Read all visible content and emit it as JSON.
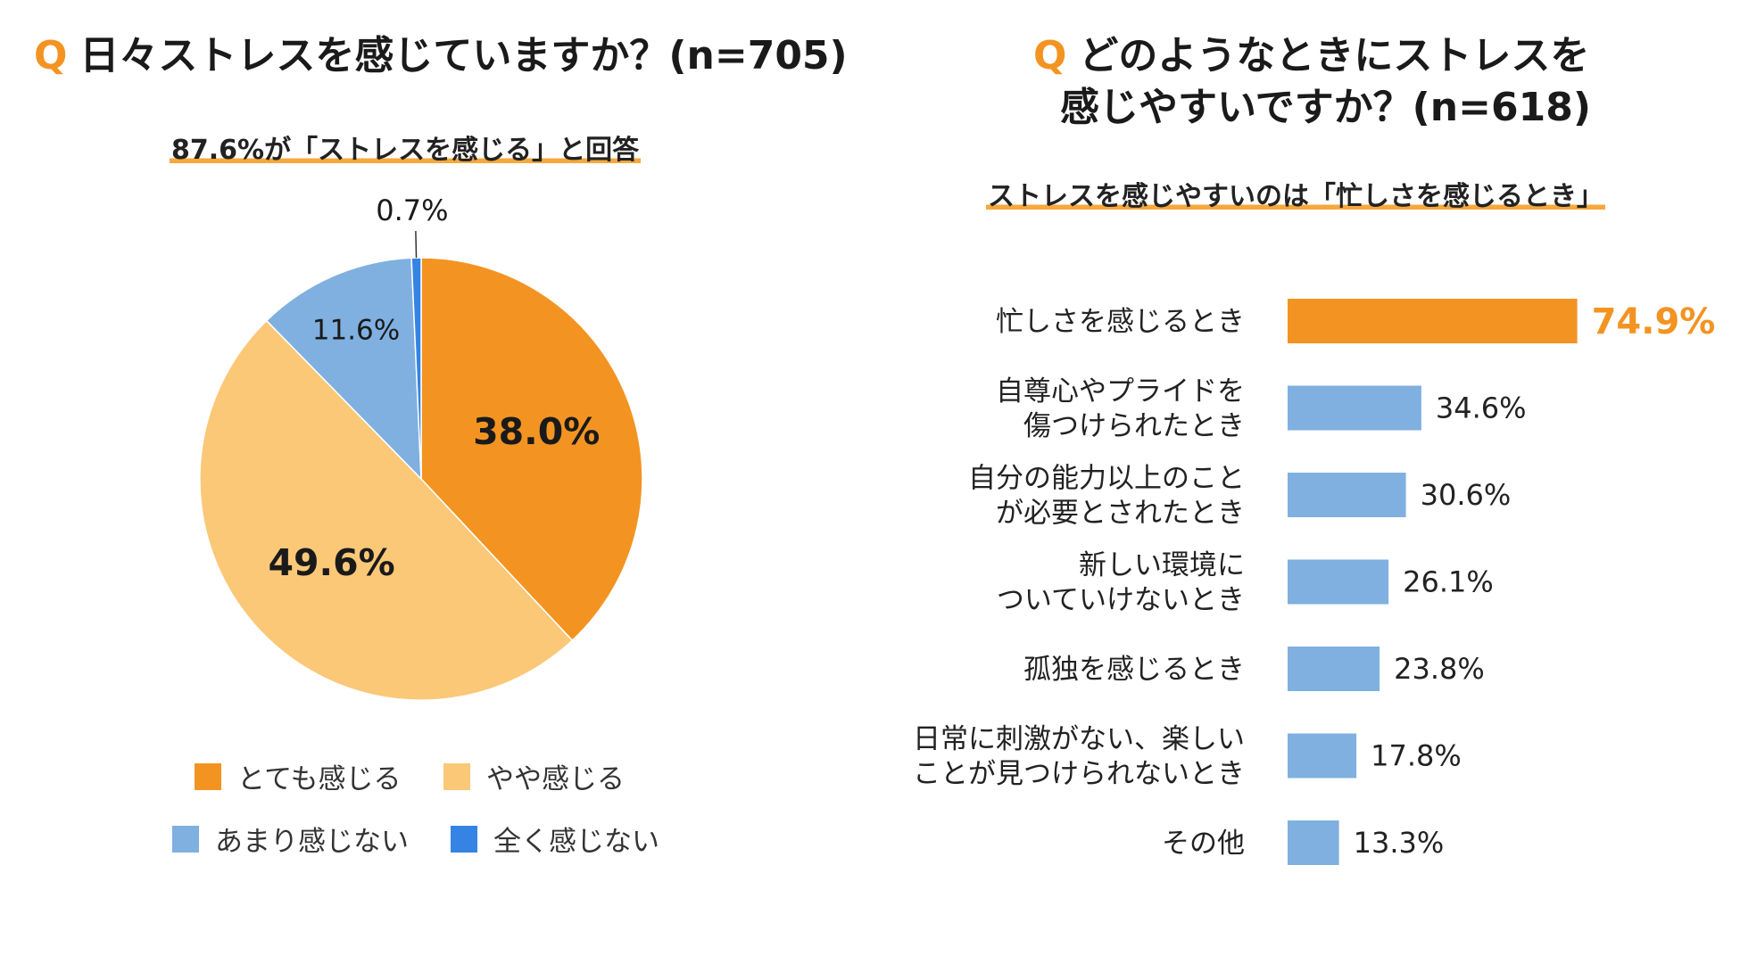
{
  "left": {
    "q_mark": "Q",
    "title": "日々ストレスを感じていますか？(n=705)",
    "subtitle": "87.6%が「ストレスを感じる」と回答"
  },
  "right": {
    "q_mark": "Q",
    "title_line1": "どのようなときにストレスを",
    "title_line2": "感じやすいですか？(n=618)",
    "subtitle": "ストレスを感じやすいのは「忙しさを感じるとき」"
  },
  "colors": {
    "orange": "#f39422",
    "light_orange": "#fbc878",
    "light_blue": "#7fb0e0",
    "blue": "#3584e4"
  },
  "chart_data": [
    {
      "type": "pie",
      "title": "日々ストレスを感じていますか？(n=705)",
      "slices": [
        {
          "label": "とても感じる",
          "value": 38.0,
          "display": "38.0%",
          "color": "#f39422",
          "label_bold": true
        },
        {
          "label": "やや感じる",
          "value": 49.6,
          "display": "49.6%",
          "color": "#fbc878",
          "label_bold": true
        },
        {
          "label": "あまり感じない",
          "value": 11.6,
          "display": "11.6%",
          "color": "#7fb0e0",
          "label_bold": false
        },
        {
          "label": "全く感じない",
          "value": 0.7,
          "display": "0.7%",
          "color": "#3584e4",
          "label_bold": false
        }
      ],
      "legend": [
        "とても感じる",
        "やや感じる",
        "あまり感じない",
        "全く感じない"
      ],
      "legend_position": "bottom"
    },
    {
      "type": "bar",
      "orientation": "horizontal",
      "title": "どのようなときにストレスを感じやすいですか？(n=618)",
      "categories": [
        [
          "忙しさを感じるとき"
        ],
        [
          "自尊心やプライドを",
          "傷つけられたとき"
        ],
        [
          "自分の能力以上のこと",
          "が必要とされたとき"
        ],
        [
          "新しい環境に",
          "ついていけないとき"
        ],
        [
          "孤独を感じるとき"
        ],
        [
          "日常に刺激がない、楽しい",
          "ことが見つけられないとき"
        ],
        [
          "その他"
        ]
      ],
      "values": [
        74.9,
        34.6,
        30.6,
        26.1,
        23.8,
        17.8,
        13.3
      ],
      "display": [
        "74.9%",
        "34.6%",
        "30.6%",
        "26.1%",
        "23.8%",
        "17.8%",
        "13.3%"
      ],
      "highlight_index": 0,
      "highlight_color": "#f39422",
      "bar_color": "#7fb0e0",
      "xlim": [
        0,
        75
      ]
    }
  ]
}
